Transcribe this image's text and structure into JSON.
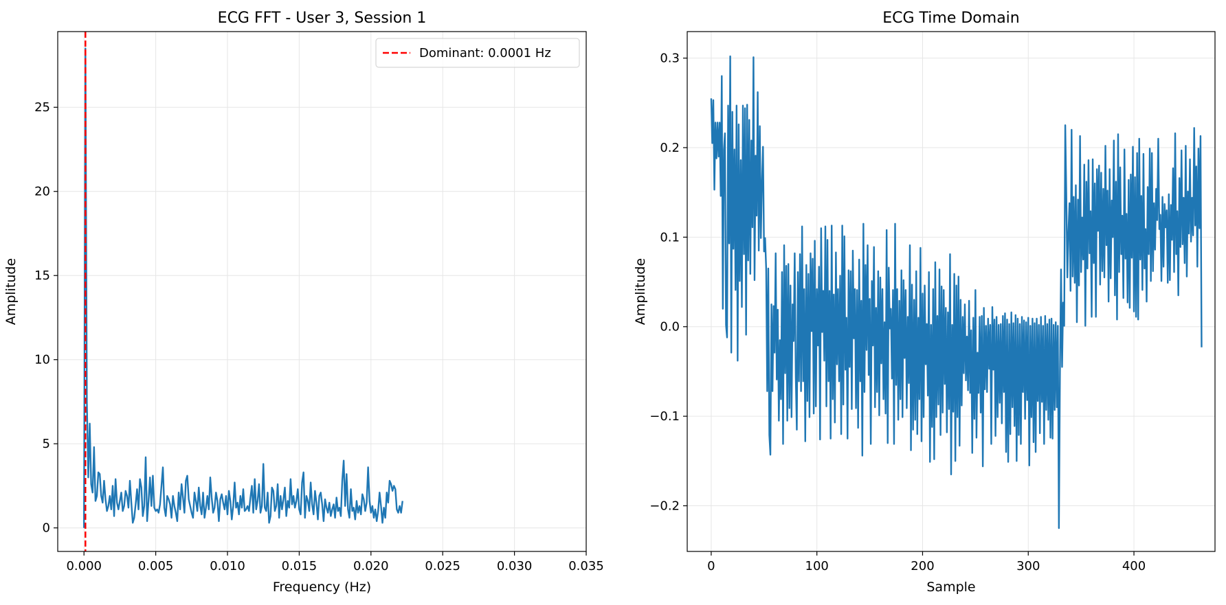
{
  "colors": {
    "line": "#1f77b4",
    "dominant": "#ff0000",
    "grid": "#e6e6e6",
    "axis": "#000000",
    "background": "#ffffff"
  },
  "chart_data": [
    {
      "type": "line",
      "title": "ECG FFT - User 3, Session 1",
      "xlabel": "Frequency (Hz)",
      "ylabel": "Amplitude",
      "xlim": [
        -0.00183,
        0.035
      ],
      "ylim": [
        -1.4,
        29.5
      ],
      "xticks": [
        0,
        0.005,
        0.01,
        0.015,
        0.02,
        0.025,
        0.03,
        0.035
      ],
      "xtick_labels": [
        "0.000",
        "0.005",
        "0.010",
        "0.015",
        "0.020",
        "0.025",
        "0.030",
        "0.035"
      ],
      "yticks": [
        0,
        5,
        10,
        15,
        20,
        25
      ],
      "ytick_labels": [
        "0",
        "5",
        "10",
        "15",
        "20",
        "25"
      ],
      "grid": true,
      "legend_position": "top-right",
      "legend": [
        {
          "label": "Dominant: 0.0001 Hz",
          "style": "dashed",
          "color": "#ff0000"
        }
      ],
      "reference_lines": [
        {
          "orientation": "vertical",
          "x": 0.0001,
          "style": "dashed",
          "color": "#ff0000"
        }
      ],
      "series": [
        {
          "color": "#1f77b4",
          "x_start": 0,
          "x_step": 0.0001,
          "values": [
            0.0,
            28.5,
            7.5,
            3.0,
            6.2,
            2.6,
            2.1,
            4.8,
            1.6,
            1.9,
            3.3,
            3.2,
            1.9,
            1.5,
            2.8,
            1.7,
            1.0,
            1.3,
            1.9,
            1.1,
            2.5,
            0.7,
            2.9,
            1.5,
            1.1,
            1.6,
            2.1,
            1.0,
            1.3,
            2.2,
            1.9,
            1.2,
            2.8,
            1.5,
            0.3,
            0.6,
            1.4,
            2.3,
            1.1,
            2.9,
            2.4,
            0.7,
            1.3,
            4.2,
            0.4,
            1.6,
            3.0,
            1.3,
            3.1,
            1.2,
            1.0,
            1.1,
            0.9,
            1.4,
            2.5,
            3.6,
            1.2,
            0.7,
            1.9,
            1.7,
            1.4,
            0.6,
            1.9,
            1.3,
            0.9,
            0.4,
            2.1,
            1.1,
            2.6,
            1.8,
            0.9,
            2.8,
            3.1,
            1.7,
            1.3,
            0.9,
            0.6,
            2.1,
            1.6,
            1.0,
            2.4,
            1.3,
            0.8,
            2.1,
            0.6,
            1.2,
            1.9,
            1.1,
            3.0,
            1.8,
            0.9,
            1.2,
            2.1,
            1.6,
            0.4,
            1.7,
            2.0,
            1.5,
            1.1,
            1.9,
            0.8,
            2.2,
            1.6,
            0.5,
            1.3,
            2.7,
            1.2,
            1.5,
            0.8,
            1.9,
            1.2,
            2.3,
            1.0,
            1.1,
            1.3,
            1.0,
            1.8,
            2.5,
            0.9,
            2.9,
            1.1,
            1.6,
            2.6,
            0.9,
            1.3,
            3.8,
            1.2,
            1.0,
            2.1,
            0.3,
            0.7,
            2.4,
            2.2,
            1.0,
            1.3,
            2.6,
            0.6,
            1.9,
            1.1,
            1.7,
            2.4,
            0.7,
            1.6,
            1.2,
            2.9,
            1.4,
            1.9,
            1.2,
            1.6,
            2.3,
            1.1,
            0.8,
            2.7,
            3.3,
            0.6,
            1.9,
            1.6,
            1.0,
            2.7,
            1.4,
            0.8,
            2.2,
            1.5,
            0.5,
            1.9,
            2.1,
            1.4,
            0.4,
            1.7,
            1.2,
            0.9,
            1.5,
            0.7,
            1.1,
            1.4,
            0.6,
            1.8,
            1.0,
            1.2,
            0.7,
            2.8,
            4.0,
            1.3,
            3.2,
            1.1,
            0.6,
            2.3,
            1.0,
            1.2,
            0.5,
            1.6,
            0.9,
            1.3,
            0.8,
            2.0,
            1.7,
            1.0,
            1.5,
            3.6,
            1.6,
            0.9,
            1.3,
            0.6,
            1.1,
            0.4,
            1.0,
            2.1,
            1.3,
            0.3,
            1.2,
            0.6,
            2.1,
            1.5,
            2.8,
            2.6,
            2.2,
            2.5,
            2.3,
            1.1,
            0.9,
            1.3,
            0.9,
            1.6
          ]
        }
      ]
    },
    {
      "type": "line",
      "title": "ECG Time Domain",
      "xlabel": "Sample",
      "ylabel": "Amplitude",
      "xlim": [
        -22.7,
        476.7
      ],
      "ylim": [
        -0.251,
        0.3296
      ],
      "xticks": [
        0,
        100,
        200,
        300,
        400
      ],
      "xtick_labels": [
        "0",
        "100",
        "200",
        "300",
        "400"
      ],
      "yticks": [
        -0.2,
        -0.1,
        0.0,
        0.1,
        0.2,
        0.3
      ],
      "ytick_labels": [
        "−0.2",
        "−0.1",
        "0.0",
        "0.1",
        "0.2",
        "0.3"
      ],
      "grid": true,
      "series": [
        {
          "color": "#1f77b4",
          "x_start": 0,
          "x_step": 1,
          "values": [
            0.255,
            0.205,
            0.253,
            0.153,
            0.228,
            0.188,
            0.228,
            0.19,
            0.228,
            0.146,
            0.28,
            0.02,
            0.198,
            0.216,
            0.002,
            -0.012,
            0.247,
            0.093,
            0.302,
            -0.029,
            0.24,
            0.087,
            0.198,
            0.041,
            0.247,
            -0.038,
            0.226,
            0.051,
            0.186,
            0.022,
            0.247,
            0.081,
            0.244,
            -0.009,
            0.248,
            0.074,
            0.231,
            0.059,
            0.208,
            0.111,
            0.301,
            0.052,
            0.191,
            0.124,
            0.262,
            0.085,
            0.224,
            0.099,
            0.161,
            0.201,
            0.084,
            0.099,
            0.065,
            -0.072,
            0.065,
            -0.121,
            -0.143,
            0.025,
            -0.072,
            0.023,
            -0.029,
            0.082,
            -0.059,
            0.019,
            -0.105,
            -0.015,
            -0.081,
            0.061,
            -0.131,
            0.091,
            -0.052,
            0.068,
            -0.105,
            0.07,
            -0.091,
            0.046,
            -0.101,
            0.025,
            -0.016,
            0.082,
            -0.056,
            -0.115,
            0.061,
            -0.061,
            0.081,
            -0.072,
            0.112,
            -0.061,
            0.042,
            -0.128,
            0.069,
            -0.083,
            0.059,
            -0.101,
            0.082,
            -0.005,
            0.076,
            -0.097,
            0.096,
            -0.089,
            0.042,
            -0.021,
            0.067,
            -0.126,
            0.11,
            -0.006,
            0.04,
            -0.038,
            0.112,
            -0.089,
            0.097,
            -0.061,
            0.04,
            -0.125,
            0.113,
            -0.081,
            0.036,
            -0.107,
            0.083,
            -0.042,
            0.042,
            -0.061,
            0.057,
            -0.12,
            0.113,
            -0.087,
            0.101,
            -0.048,
            0.01,
            -0.125,
            0.063,
            -0.045,
            0.062,
            -0.092,
            0.085,
            -0.013,
            0.042,
            -0.091,
            0.041,
            -0.113,
            0.075,
            -0.061,
            0.029,
            -0.144,
            0.115,
            -0.073,
            0.069,
            -0.026,
            0.091,
            -0.054,
            0.031,
            -0.131,
            0.051,
            -0.021,
            0.089,
            -0.09,
            0.021,
            -0.073,
            0.062,
            -0.099,
            0.055,
            -0.041,
            0.042,
            -0.081,
            0.005,
            -0.097,
            0.108,
            -0.13,
            0.066,
            -0.002,
            0.02,
            -0.058,
            0.041,
            -0.131,
            0.115,
            -0.065,
            0.042,
            -0.104,
            0.029,
            -0.081,
            0.063,
            -0.101,
            0.052,
            -0.035,
            0.041,
            -0.091,
            0.011,
            -0.063,
            0.091,
            -0.138,
            0.047,
            -0.115,
            0.03,
            -0.104,
            0.062,
            -0.12,
            0.01,
            -0.081,
            0.088,
            -0.128,
            0.037,
            -0.101,
            0.046,
            -0.042,
            0.003,
            -0.077,
            0.061,
            -0.151,
            0.002,
            -0.112,
            0.042,
            -0.148,
            0.072,
            -0.101,
            0.012,
            -0.087,
            0.064,
            -0.121,
            0.045,
            -0.096,
            0.041,
            -0.064,
            0.021,
            -0.118,
            0.016,
            -0.092,
            0.081,
            -0.165,
            0.002,
            -0.095,
            0.059,
            -0.15,
            0.046,
            -0.101,
            0.056,
            -0.133,
            0.03,
            -0.088,
            0.011,
            -0.052,
            0.025,
            -0.06,
            -0.011,
            -0.071,
            0.029,
            -0.074,
            -0.004,
            -0.141,
            0.01,
            -0.103,
            0.041,
            -0.124,
            -0.029,
            -0.074,
            0.011,
            -0.096,
            0.012,
            -0.156,
            0.021,
            -0.07,
            0.001,
            -0.073,
            0.009,
            -0.047,
            0.002,
            -0.131,
            0.022,
            -0.048,
            0.008,
            -0.122,
            0.011,
            -0.101,
            0.002,
            -0.085,
            0.003,
            -0.108,
            0.012,
            -0.073,
            0.015,
            -0.14,
            0.008,
            -0.151,
            0.003,
            -0.12,
            0.016,
            -0.09,
            0.004,
            -0.111,
            0.013,
            -0.15,
            0.009,
            -0.121,
            0.003,
            -0.131,
            0.011,
            -0.073,
            0.007,
            -0.103,
            0.005,
            -0.082,
            0.01,
            -0.155,
            0.001,
            -0.101,
            0.009,
            -0.129,
            0.004,
            -0.14,
            0.009,
            -0.083,
            0.002,
            -0.119,
            0.011,
            -0.084,
            0.001,
            -0.131,
            0.012,
            -0.093,
            0.003,
            -0.104,
            0.008,
            -0.124,
            0.009,
            -0.125,
            0.002,
            -0.093,
            0.005,
            -0.09,
            0.001,
            -0.225,
            -0.05,
            0.064,
            -0.045,
            0.027,
            0.001,
            0.225,
            0.148,
            0.055,
            0.105,
            0.138,
            0.04,
            0.22,
            0.056,
            0.145,
            0.049,
            0.158,
            0.005,
            0.142,
            0.046,
            0.213,
            0.061,
            0.122,
            0.075,
            0.181,
            0.001,
            0.162,
            0.065,
            0.186,
            0.082,
            0.129,
            0.011,
            0.187,
            0.071,
            0.16,
            0.011,
            0.176,
            0.107,
            0.18,
            0.047,
            0.172,
            0.062,
            0.154,
            0.055,
            0.202,
            0.091,
            0.152,
            0.028,
            0.176,
            0.054,
            0.141,
            0.1,
            0.208,
            0.035,
            0.162,
            0.008,
            0.215,
            0.061,
            0.178,
            0.081,
            0.124,
            0.032,
            0.198,
            0.076,
            0.126,
            0.027,
            0.164,
            0.021,
            0.17,
            0.077,
            0.201,
            0.017,
            0.167,
            0.011,
            0.194,
            0.008,
            0.21,
            0.075,
            0.146,
            0.041,
            0.193,
            0.065,
            0.109,
            0.028,
            0.156,
            0.081,
            0.199,
            0.051,
            0.194,
            0.062,
            0.138,
            0.086,
            0.154,
            0.119,
            0.21,
            0.109,
            0.125,
            0.051,
            0.145,
            0.067,
            0.137,
            0.111,
            0.13,
            0.049,
            0.148,
            0.052,
            0.136,
            0.097,
            0.177,
            0.061,
            0.216,
            0.081,
            0.129,
            0.035,
            0.166,
            0.089,
            0.197,
            0.092,
            0.144,
            0.071,
            0.202,
            0.056,
            0.151,
            0.104,
            0.187,
            0.095,
            0.144,
            0.102,
            0.222,
            0.113,
            0.179,
            0.067,
            0.199,
            0.11,
            0.213,
            -0.023
          ]
        }
      ]
    }
  ]
}
